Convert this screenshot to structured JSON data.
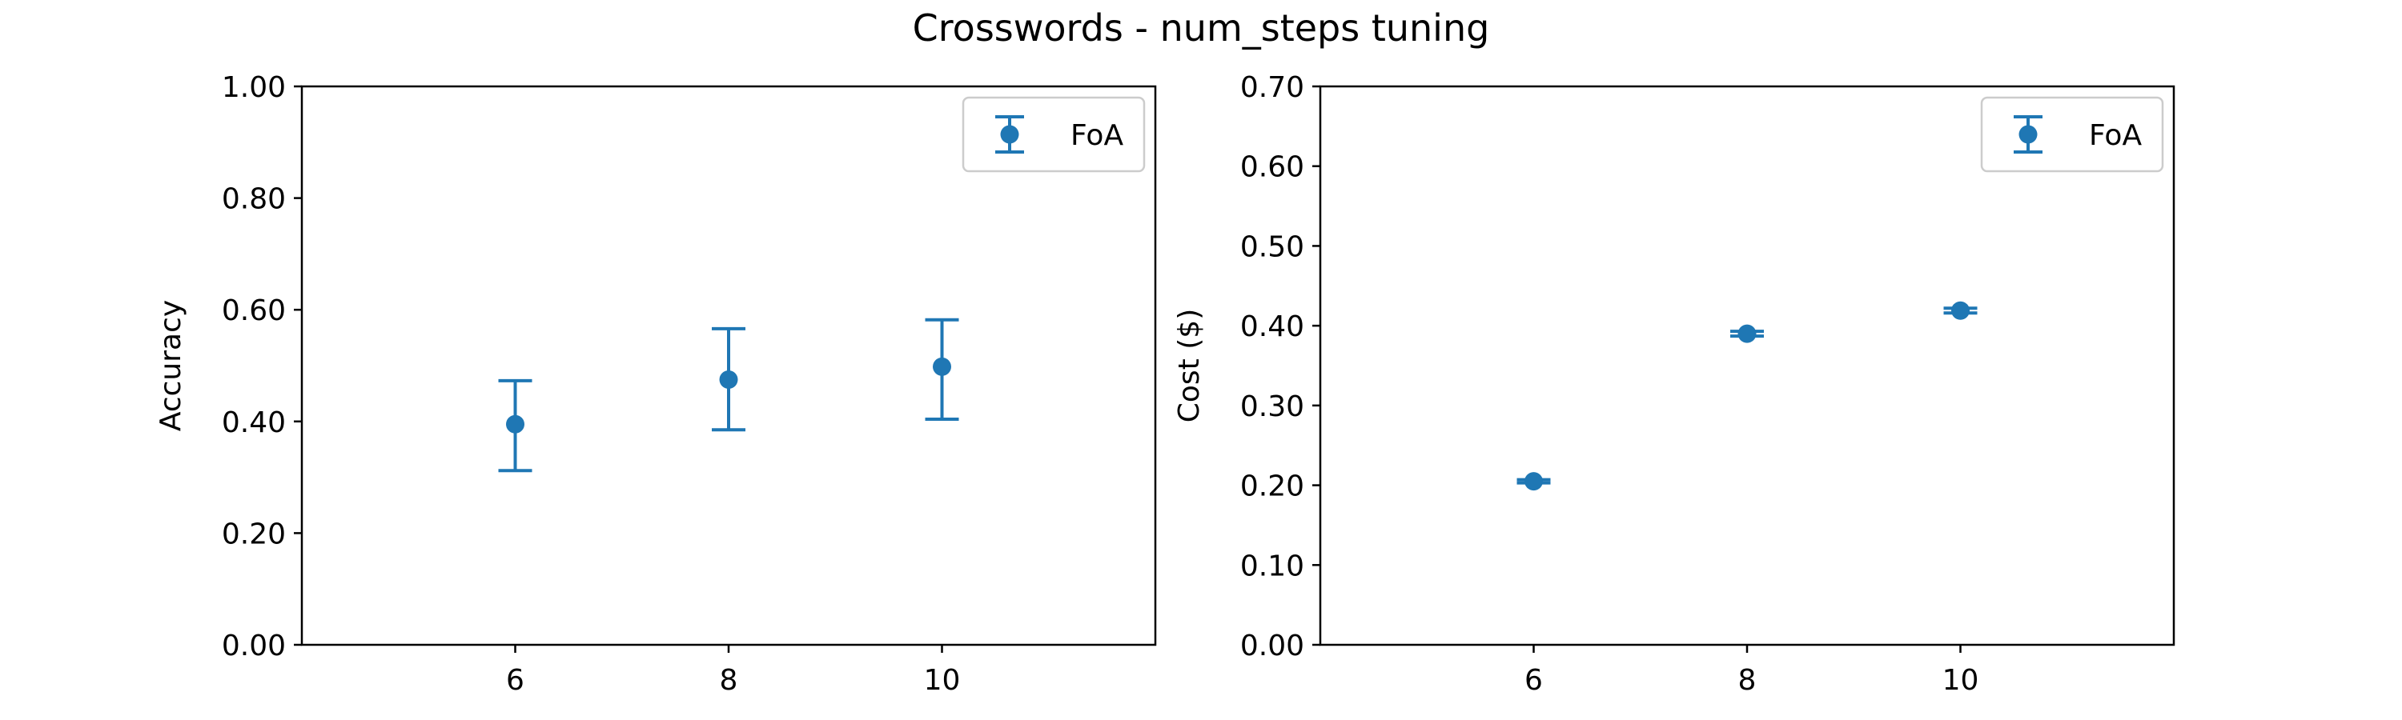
{
  "figure": {
    "title": "Crosswords - num_steps tuning"
  },
  "colors": {
    "series": "#1f77b4",
    "axes": "#000000",
    "legend_border": "#cccccc"
  },
  "chart_data": [
    {
      "type": "scatter",
      "subtype": "errorbar",
      "title": "",
      "xlabel": "",
      "ylabel": "Accuracy",
      "xlim": [
        4,
        12
      ],
      "ylim": [
        0,
        1.0
      ],
      "xticks": [
        6,
        8,
        10
      ],
      "xtick_labels": [
        "6",
        "8",
        "10"
      ],
      "yticks": [
        0,
        0.2,
        0.4,
        0.6,
        0.8,
        1.0
      ],
      "ytick_labels": [
        "0.00",
        "0.20",
        "0.40",
        "0.60",
        "0.80",
        "1.00"
      ],
      "grid": false,
      "legend": {
        "placement": "top-right",
        "entries": [
          "FoA"
        ]
      },
      "series": [
        {
          "name": "FoA",
          "x": [
            6,
            8,
            10
          ],
          "y": [
            0.395,
            0.475,
            0.498
          ],
          "yerr_low": [
            0.312,
            0.385,
            0.404
          ],
          "yerr_high": [
            0.473,
            0.566,
            0.582
          ]
        }
      ]
    },
    {
      "type": "scatter",
      "subtype": "errorbar",
      "title": "",
      "xlabel": "",
      "ylabel": "Cost ($)",
      "xlim": [
        4,
        12
      ],
      "ylim": [
        0,
        0.7
      ],
      "xticks": [
        6,
        8,
        10
      ],
      "xtick_labels": [
        "6",
        "8",
        "10"
      ],
      "yticks": [
        0,
        0.1,
        0.2,
        0.3,
        0.4,
        0.5,
        0.6,
        0.7
      ],
      "ytick_labels": [
        "0.00",
        "0.10",
        "0.20",
        "0.30",
        "0.40",
        "0.50",
        "0.60",
        "0.70"
      ],
      "grid": false,
      "legend": {
        "placement": "top-right",
        "entries": [
          "FoA"
        ]
      },
      "series": [
        {
          "name": "FoA",
          "x": [
            6,
            8,
            10
          ],
          "y": [
            0.205,
            0.39,
            0.419
          ],
          "yerr_low": [
            0.203,
            0.387,
            0.416
          ],
          "yerr_high": [
            0.207,
            0.393,
            0.422
          ]
        }
      ]
    }
  ]
}
